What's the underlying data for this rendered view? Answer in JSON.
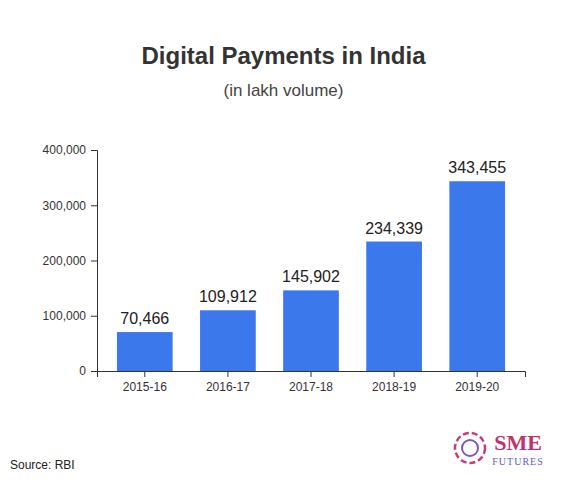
{
  "chart_data": {
    "type": "bar",
    "title": "Digital Payments in India",
    "subtitle": "(in lakh volume)",
    "categories": [
      "2015-16",
      "2016-17",
      "2017-18",
      "2018-19",
      "2019-20"
    ],
    "values": [
      70466,
      109912,
      145902,
      234339,
      343455
    ],
    "value_labels": [
      "70,466",
      "109,912",
      "145,902",
      "234,339",
      "343,455"
    ],
    "color": "#3b78ec",
    "ylim": [
      0,
      400000
    ],
    "yticks": [
      0,
      {
        "value": 100000,
        "label": "100,000"
      },
      {
        "value": 200000,
        "label": "200,000"
      },
      {
        "value": 300000,
        "label": "300,000"
      },
      {
        "value": 400000,
        "label": "400,000"
      }
    ],
    "grid": false,
    "data_labels": true,
    "source": "Source: RBI",
    "logo_text": [
      "SME",
      "FUTURES"
    ]
  }
}
